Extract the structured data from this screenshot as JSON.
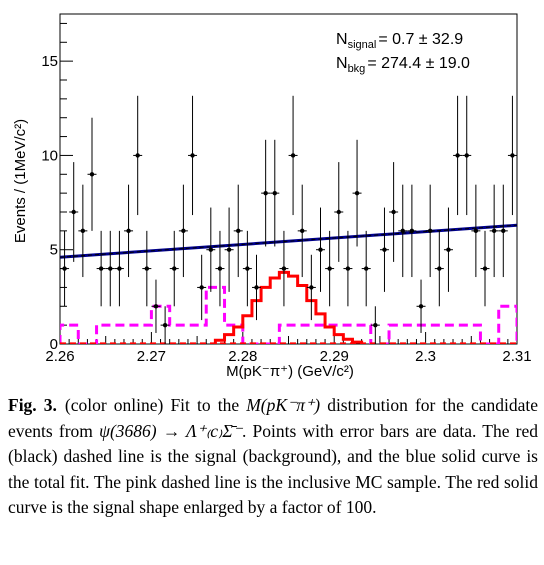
{
  "chart_data": {
    "type": "scatter",
    "xlabel": "M(pK⁻π⁺) (GeV/c²)",
    "ylabel": "Events / (1MeV/c²)",
    "xlim": [
      2.26,
      2.31
    ],
    "ylim": [
      0,
      17.5
    ],
    "xticks": [
      2.26,
      2.27,
      2.28,
      2.29,
      2.3,
      2.31
    ],
    "xtick_labels": [
      "2.26",
      "2.27",
      "2.28",
      "2.29",
      "2.3",
      "2.31"
    ],
    "yticks": [
      0,
      5,
      10,
      15
    ],
    "ytick_labels": [
      "0",
      "5",
      "10",
      "15"
    ],
    "grid": false,
    "annotations": [
      {
        "label": "N",
        "sub": "signal",
        "value": "=   0.7 ± 32.9"
      },
      {
        "label": "N",
        "sub": "bkg",
        "value": "= 274.4 ± 19.0"
      }
    ],
    "series": [
      {
        "kind": "data points with error bars",
        "color": "#000000",
        "x": [
          2.2605,
          2.2615,
          2.2625,
          2.2635,
          2.2645,
          2.2655,
          2.2665,
          2.2675,
          2.2685,
          2.2695,
          2.2705,
          2.2715,
          2.2725,
          2.2735,
          2.2745,
          2.2755,
          2.2765,
          2.2775,
          2.2785,
          2.2795,
          2.2805,
          2.2815,
          2.2825,
          2.2835,
          2.2845,
          2.2855,
          2.2865,
          2.2875,
          2.2885,
          2.2895,
          2.2905,
          2.2915,
          2.2925,
          2.2935,
          2.2945,
          2.2955,
          2.2965,
          2.2975,
          2.2985,
          2.2995,
          2.3005,
          2.3015,
          2.3025,
          2.3035,
          2.3045,
          2.3055,
          2.3065,
          2.3075,
          2.3085,
          2.3095
        ],
        "y": [
          4,
          7,
          6,
          9,
          4,
          4,
          4,
          6,
          10,
          4,
          2,
          1,
          4,
          6,
          10,
          3,
          5,
          4,
          5,
          6,
          4,
          3,
          8,
          8,
          4,
          10,
          6,
          3,
          5,
          4,
          7,
          4,
          8,
          4,
          1,
          5,
          7,
          6,
          6,
          2,
          6,
          4,
          5,
          10,
          10,
          6,
          4,
          6,
          6,
          10
        ]
      },
      {
        "kind": "total fit",
        "color": "#00008b",
        "style": "solid",
        "x": [
          2.26,
          2.31
        ],
        "y": [
          4.6,
          6.3
        ]
      },
      {
        "kind": "background",
        "color": "#000000",
        "style": "dashed",
        "x": [
          2.26,
          2.31
        ],
        "y": [
          4.6,
          6.3
        ]
      },
      {
        "kind": "signal",
        "color": "#ff0000",
        "style": "dashed",
        "x": [
          2.26,
          2.31
        ],
        "y": [
          0.03,
          0.03
        ]
      },
      {
        "kind": "inclusive MC",
        "color": "#ff00ff",
        "style": "dashed",
        "bin_edges": [
          2.26,
          2.262,
          2.264,
          2.266,
          2.268,
          2.27,
          2.272,
          2.274,
          2.276,
          2.278,
          2.28,
          2.282,
          2.284,
          2.286,
          2.288,
          2.29,
          2.292,
          2.294,
          2.296,
          2.298,
          2.3,
          2.302,
          2.304,
          2.306,
          2.308,
          2.31
        ],
        "values": [
          1,
          0,
          1,
          1,
          1,
          2,
          1,
          1,
          3,
          1,
          0,
          0,
          1,
          1,
          1,
          1,
          1,
          0,
          1,
          1,
          1,
          1,
          1,
          0,
          2
        ]
      },
      {
        "kind": "signal shape x100",
        "color": "#ff0000",
        "style": "solid",
        "bin_edges": [
          2.277,
          2.278,
          2.279,
          2.28,
          2.281,
          2.282,
          2.283,
          2.284,
          2.285,
          2.286,
          2.287,
          2.288,
          2.289,
          2.29,
          2.291,
          2.292,
          2.293
        ],
        "values": [
          0.2,
          0.5,
          0.9,
          1.5,
          2.3,
          3.0,
          3.5,
          3.8,
          3.6,
          3.1,
          2.3,
          1.6,
          0.9,
          0.5,
          0.25,
          0.1
        ]
      }
    ]
  },
  "caption": {
    "label": "Fig. 3.",
    "pre": "(color online) Fit to the ",
    "math1": "M(pK⁻π⁺)",
    "mid1": " distribution for the candidate events from ",
    "math2": "ψ(3686) → Λ⁺₍c₎Σ̄⁻",
    "post": ". Points with error bars are data. The red (black) dashed line is the signal (background), and the blue solid curve is the total fit. The pink dashed line is the inclusive MC sample. The red solid curve is the signal shape enlarged by a factor of 100."
  }
}
